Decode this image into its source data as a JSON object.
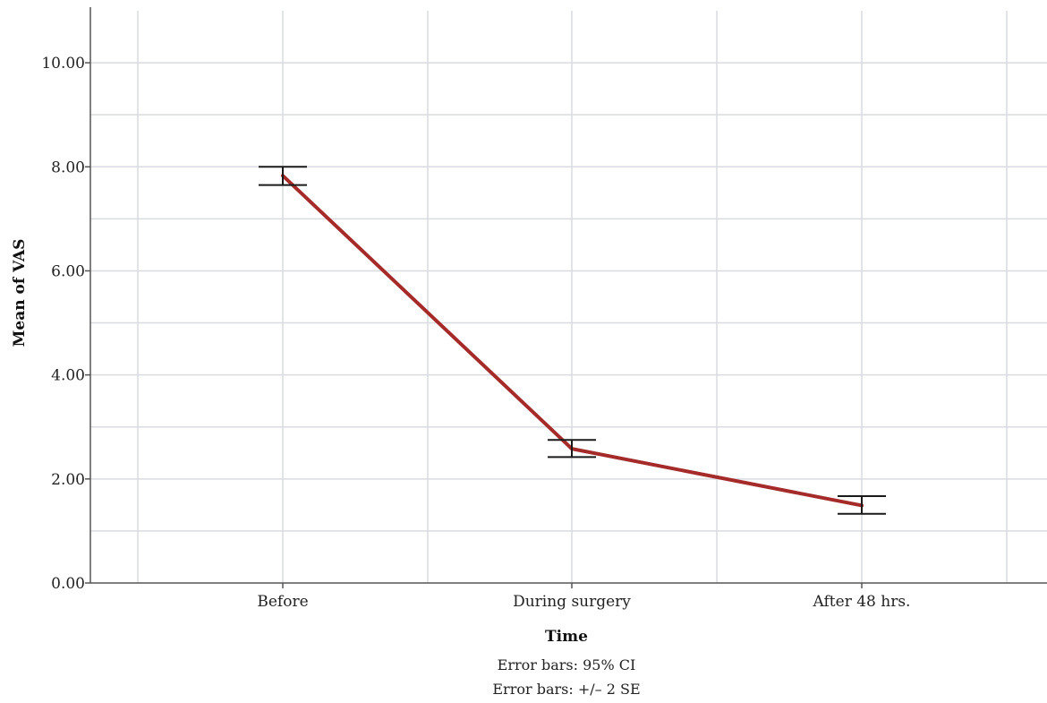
{
  "chart_data": {
    "type": "line",
    "categories": [
      "Before",
      "During surgery",
      "After 48 hrs."
    ],
    "series": [
      {
        "values": [
          7.83,
          2.58,
          1.49
        ],
        "error_lower": [
          7.65,
          2.42,
          1.33
        ],
        "error_upper": [
          8.0,
          2.75,
          1.67
        ],
        "color": "#a52a2a"
      }
    ],
    "xlabel": "Time",
    "ylabel": "Mean of VAS",
    "ylim": [
      0,
      11
    ],
    "yticks": [
      "0.00",
      "2.00",
      "4.00",
      "6.00",
      "8.00",
      "10.00"
    ],
    "grid": true,
    "notes": [
      "Error bars: 95% CI",
      "Error bars: +/– 2 SE"
    ],
    "grid_color": "#d9dbe0",
    "axis_color": "#555555"
  }
}
